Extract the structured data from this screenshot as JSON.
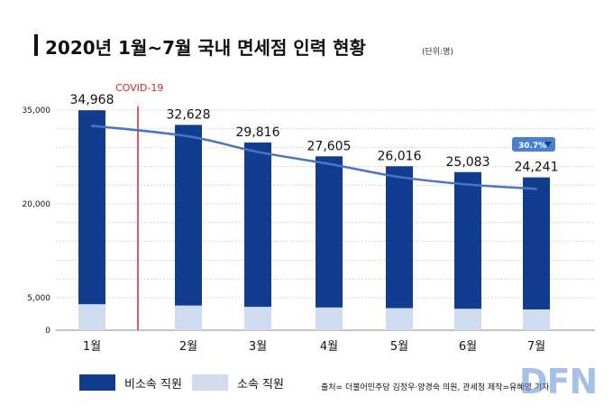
{
  "chart_data": {
    "type": "bar",
    "title": "2020년 1월~7월 국내 면세점 인력 현황",
    "unit_note": "(단위:명)",
    "categories": [
      "1월",
      "2월",
      "3월",
      "4월",
      "5월",
      "6월",
      "7월"
    ],
    "series": [
      {
        "name": "비소속 직원",
        "color": "#123d8f",
        "values": [
          30968,
          28828,
          26216,
          24105,
          22616,
          21783,
          21041
        ]
      },
      {
        "name": "소속 직원",
        "color": "#cfdcf0",
        "values": [
          4000,
          3800,
          3600,
          3500,
          3400,
          3300,
          3200
        ]
      }
    ],
    "totals": [
      34968,
      32628,
      29816,
      27605,
      26016,
      25083,
      24241
    ],
    "total_labels": [
      "34,968",
      "32,628",
      "29,816",
      "27,605",
      "26,016",
      "25,083",
      "24,241"
    ],
    "trend_line": {
      "color": "#4a74c4",
      "values": [
        32500,
        30800,
        28300,
        26400,
        24300,
        23100,
        22400
      ]
    },
    "y_ticks": [
      {
        "value": 0,
        "label": "0"
      },
      {
        "value": 5000,
        "label": "5,000"
      },
      {
        "value": 20000,
        "label": "20,000"
      },
      {
        "value": 35000,
        "label": "35,000"
      }
    ],
    "ylim": [
      0,
      35000
    ],
    "annotations": {
      "covid_label": "COVID-19",
      "covid_color": "#d9232a",
      "drop_badge": "30.7%",
      "drop_badge_color": "#4a7fd0"
    },
    "legend_placement": "bottom-left",
    "grid": true
  },
  "source": "출처= 더불어민주당 김정우·양경숙 의원, 관세청 제작=유혜영 기자",
  "watermark": "DFN"
}
